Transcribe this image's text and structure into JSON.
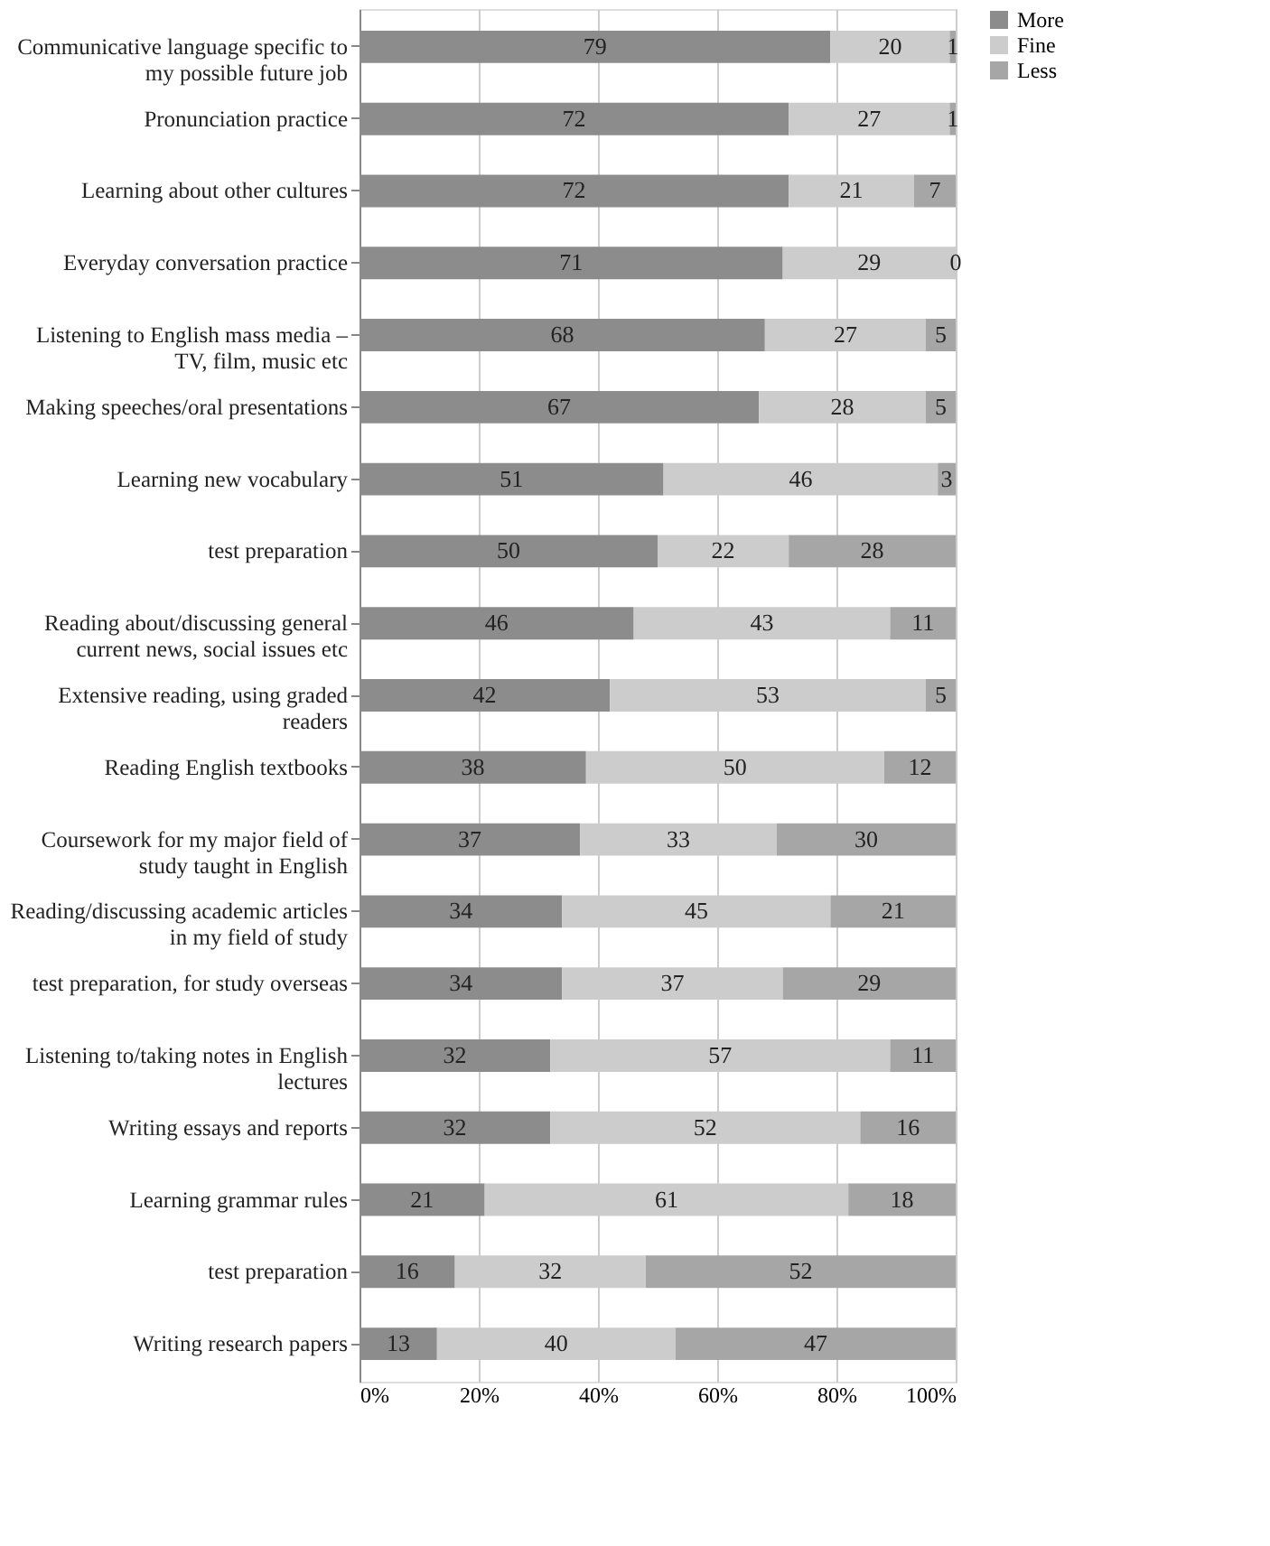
{
  "chart_data": {
    "type": "bar",
    "orientation": "horizontal",
    "stacked": true,
    "data_labels": true,
    "grid": "x",
    "legend": "right",
    "categories": [
      "Communicative language specific to my possible future job",
      "Pronunciation practice",
      "Learning about other cultures",
      "Everyday conversation practice",
      "Listening to English mass media – TV, film, music etc",
      "Making speeches/oral presentations",
      "Learning new vocabulary",
      "test preparation",
      "Reading about/discussing general current news, social issues etc",
      "Extensive reading, using graded readers",
      "Reading English textbooks",
      "Coursework for my major field of study taught in English",
      "Reading/discussing academic articles in my field of study",
      "test preparation, for study overseas",
      "Listening to/taking notes in English lectures",
      "Writing essays and reports",
      "Learning grammar rules",
      "test preparation",
      "Writing research papers"
    ],
    "series": [
      {
        "name": "More",
        "color": "#8c8c8c",
        "values": [
          79,
          72,
          72,
          71,
          68,
          67,
          51,
          50,
          46,
          42,
          38,
          37,
          34,
          34,
          32,
          32,
          21,
          16,
          13
        ]
      },
      {
        "name": "Fine",
        "color": "#cccccc",
        "values": [
          20,
          27,
          21,
          29,
          27,
          28,
          46,
          22,
          43,
          53,
          50,
          33,
          45,
          37,
          57,
          52,
          61,
          32,
          40
        ]
      },
      {
        "name": "Less",
        "color": "#a6a6a6",
        "values": [
          1,
          1,
          7,
          0,
          5,
          5,
          3,
          28,
          11,
          5,
          12,
          30,
          21,
          29,
          11,
          16,
          18,
          52,
          47
        ]
      }
    ],
    "xlim": [
      0,
      100
    ],
    "xticks": [
      {
        "value": 0,
        "label": "0%"
      },
      {
        "value": 20,
        "label": "20%"
      },
      {
        "value": 40,
        "label": "40%"
      },
      {
        "value": 60,
        "label": "60%"
      },
      {
        "value": 80,
        "label": "80%"
      },
      {
        "value": 100,
        "label": "100%"
      }
    ]
  }
}
